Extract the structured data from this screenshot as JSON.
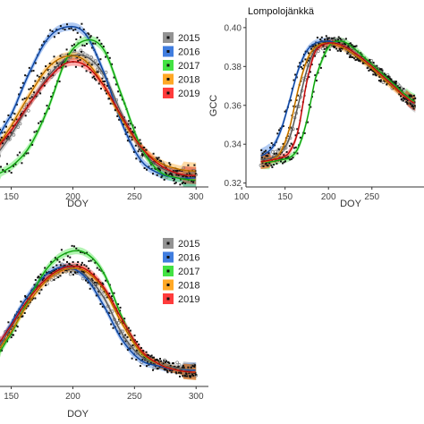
{
  "legend": {
    "entries": [
      {
        "label": "2015",
        "color": "#808080",
        "marker": "open-circle"
      },
      {
        "label": "2016",
        "color": "#1f66d9",
        "marker": "square"
      },
      {
        "label": "2017",
        "color": "#22dd22",
        "marker": "triangle"
      },
      {
        "label": "2018",
        "color": "#ff9900",
        "marker": "plus"
      },
      {
        "label": "2019",
        "color": "#ff1a1a",
        "marker": "x"
      }
    ]
  },
  "chart_data": [
    {
      "id": "panel-top-left",
      "type": "scatter",
      "title": "",
      "xlabel": "DOY",
      "ylabel": "",
      "xlim": [
        130,
        310
      ],
      "ylim": [
        0.327,
        0.402
      ],
      "x_ticks": [
        150,
        200,
        250,
        300
      ],
      "y_ticks": [],
      "grid": false,
      "legend_position": "top-right",
      "series": [
        {
          "name": "2015",
          "color": "#808080",
          "x": [
            130,
            150,
            165,
            180,
            195,
            210,
            225,
            240,
            255,
            270,
            285,
            300
          ],
          "y": [
            0.337,
            0.35,
            0.364,
            0.376,
            0.384,
            0.385,
            0.377,
            0.359,
            0.344,
            0.336,
            0.333,
            0.332
          ]
        },
        {
          "name": "2016",
          "color": "#1f66d9",
          "x": [
            130,
            150,
            165,
            180,
            195,
            210,
            225,
            240,
            255,
            270,
            285,
            300
          ],
          "y": [
            0.343,
            0.359,
            0.378,
            0.393,
            0.398,
            0.395,
            0.378,
            0.355,
            0.339,
            0.333,
            0.331,
            0.331
          ]
        },
        {
          "name": "2017",
          "color": "#22dd22",
          "x": [
            130,
            150,
            165,
            180,
            195,
            210,
            225,
            240,
            255,
            270,
            285,
            300
          ],
          "y": [
            0.331,
            0.336,
            0.345,
            0.362,
            0.384,
            0.392,
            0.388,
            0.367,
            0.345,
            0.334,
            0.331,
            0.33
          ]
        },
        {
          "name": "2018",
          "color": "#ff9900",
          "x": [
            130,
            150,
            165,
            180,
            195,
            210,
            225,
            240,
            255,
            270,
            285,
            300
          ],
          "y": [
            0.339,
            0.354,
            0.368,
            0.38,
            0.385,
            0.383,
            0.372,
            0.357,
            0.345,
            0.338,
            0.335,
            0.334
          ]
        },
        {
          "name": "2019",
          "color": "#ff1a1a",
          "x": [
            130,
            150,
            165,
            180,
            195,
            210,
            225,
            240,
            255,
            270,
            285,
            300
          ],
          "y": [
            0.34,
            0.352,
            0.364,
            0.375,
            0.382,
            0.381,
            0.372,
            0.358,
            0.345,
            0.337,
            0.333,
            0.332
          ]
        }
      ]
    },
    {
      "id": "panel-top-right",
      "type": "scatter",
      "title": "Lompolojänkkä",
      "xlabel": "DOY",
      "ylabel": "GCC",
      "xlim": [
        105,
        310
      ],
      "ylim": [
        0.318,
        0.405
      ],
      "x_ticks": [
        100,
        150,
        200,
        250
      ],
      "y_ticks": [
        0.32,
        0.34,
        0.36,
        0.38,
        0.4
      ],
      "grid": false,
      "series": [
        {
          "name": "2015",
          "color": "#808080",
          "x": [
            122,
            135,
            145,
            155,
            165,
            175,
            185,
            200,
            215,
            230,
            245,
            260,
            275,
            290,
            300
          ],
          "y": [
            0.332,
            0.333,
            0.336,
            0.343,
            0.36,
            0.378,
            0.389,
            0.392,
            0.391,
            0.387,
            0.382,
            0.376,
            0.37,
            0.364,
            0.36
          ]
        },
        {
          "name": "2016",
          "color": "#1f66d9",
          "x": [
            122,
            135,
            145,
            155,
            165,
            175,
            185,
            200,
            215,
            230,
            245,
            260,
            275,
            290,
            300
          ],
          "y": [
            0.334,
            0.338,
            0.347,
            0.362,
            0.378,
            0.388,
            0.392,
            0.393,
            0.391,
            0.387,
            0.382,
            0.376,
            0.37,
            0.364,
            0.361
          ]
        },
        {
          "name": "2017",
          "color": "#22dd22",
          "x": [
            122,
            135,
            145,
            155,
            165,
            175,
            185,
            200,
            215,
            230,
            245,
            260,
            275,
            290,
            300
          ],
          "y": [
            0.331,
            0.331,
            0.332,
            0.333,
            0.338,
            0.352,
            0.374,
            0.39,
            0.393,
            0.389,
            0.383,
            0.377,
            0.371,
            0.365,
            0.362
          ]
        },
        {
          "name": "2018",
          "color": "#ff9900",
          "x": [
            122,
            135,
            145,
            155,
            165,
            175,
            185,
            200,
            215,
            230,
            245,
            260,
            275,
            290,
            300
          ],
          "y": [
            0.331,
            0.332,
            0.336,
            0.348,
            0.368,
            0.383,
            0.39,
            0.392,
            0.39,
            0.386,
            0.381,
            0.375,
            0.369,
            0.364,
            0.361
          ]
        },
        {
          "name": "2019",
          "color": "#ff1a1a",
          "x": [
            122,
            135,
            145,
            155,
            165,
            175,
            185,
            200,
            215,
            230,
            245,
            260,
            275,
            290,
            300
          ],
          "y": [
            0.331,
            0.332,
            0.333,
            0.336,
            0.347,
            0.372,
            0.388,
            0.392,
            0.391,
            0.387,
            0.382,
            0.376,
            0.37,
            0.364,
            0.361
          ]
        }
      ]
    },
    {
      "id": "panel-bottom-left",
      "type": "scatter",
      "title": "",
      "xlabel": "DOY",
      "ylabel": "",
      "xlim": [
        130,
        310
      ],
      "ylim": [
        0.326,
        0.402
      ],
      "x_ticks": [
        150,
        200,
        250,
        300
      ],
      "y_ticks": [],
      "grid": false,
      "legend_position": "top-right",
      "series": [
        {
          "name": "2015",
          "color": "#808080",
          "x": [
            130,
            150,
            165,
            180,
            195,
            210,
            225,
            240,
            255,
            270,
            285,
            300
          ],
          "y": [
            0.337,
            0.355,
            0.37,
            0.38,
            0.384,
            0.381,
            0.37,
            0.352,
            0.341,
            0.337,
            0.335,
            0.334
          ]
        },
        {
          "name": "2016",
          "color": "#1f66d9",
          "x": [
            130,
            150,
            165,
            180,
            195,
            210,
            225,
            240,
            255,
            270,
            285,
            300
          ],
          "y": [
            0.338,
            0.357,
            0.372,
            0.382,
            0.385,
            0.38,
            0.366,
            0.349,
            0.339,
            0.336,
            0.334,
            0.334
          ]
        },
        {
          "name": "2017",
          "color": "#22dd22",
          "x": [
            130,
            150,
            165,
            180,
            195,
            210,
            225,
            240,
            255,
            270,
            285,
            300
          ],
          "y": [
            0.335,
            0.352,
            0.37,
            0.385,
            0.392,
            0.392,
            0.382,
            0.36,
            0.343,
            0.337,
            0.334,
            0.333
          ]
        },
        {
          "name": "2018",
          "color": "#ff9900",
          "x": [
            130,
            150,
            165,
            180,
            195,
            210,
            225,
            240,
            255,
            270,
            285,
            300
          ],
          "y": [
            0.337,
            0.353,
            0.368,
            0.379,
            0.384,
            0.383,
            0.374,
            0.357,
            0.343,
            0.337,
            0.334,
            0.333
          ]
        },
        {
          "name": "2019",
          "color": "#ff1a1a",
          "x": [
            130,
            150,
            165,
            180,
            195,
            210,
            225,
            240,
            255,
            270,
            285,
            300
          ],
          "y": [
            0.34,
            0.356,
            0.37,
            0.38,
            0.385,
            0.384,
            0.375,
            0.359,
            0.344,
            0.337,
            0.334,
            0.333
          ]
        }
      ]
    }
  ]
}
